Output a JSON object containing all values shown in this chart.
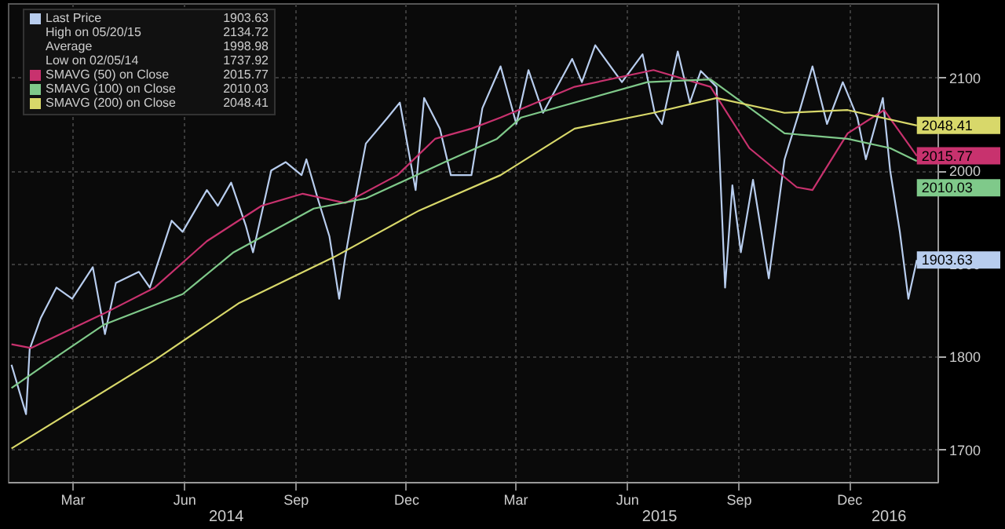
{
  "chart_data": {
    "type": "line",
    "xlim": [
      "2014-01-21",
      "2016-02-26"
    ],
    "ylim": [
      1665,
      2180
    ],
    "yticks": [
      1700,
      1800,
      1900,
      2000,
      2100
    ],
    "xticks": [
      {
        "value": "2014-03-15",
        "label": "Mar"
      },
      {
        "value": "2014-06-15",
        "label": "Jun"
      },
      {
        "value": "2014-09-15",
        "label": "Sep"
      },
      {
        "value": "2014-12-15",
        "label": "Dec"
      },
      {
        "value": "2015-03-15",
        "label": "Mar"
      },
      {
        "value": "2015-06-15",
        "label": "Jun"
      },
      {
        "value": "2015-09-15",
        "label": "Sep"
      },
      {
        "value": "2015-12-15",
        "label": "Dec"
      }
    ],
    "x2lim": [
      "2014-01-21",
      "2016-02-26"
    ],
    "x2ticks": [
      {
        "value": "2014-07-20",
        "label": "2014"
      },
      {
        "value": "2015-07-12",
        "label": "2015"
      },
      {
        "value": "2016-01-17",
        "label": "2016"
      }
    ],
    "grid": true,
    "legend": "top left",
    "annotations": [
      "High on 05/20/15 2134.72",
      "Average 1998.98",
      "Low on 02/05/14 1737.92"
    ],
    "series": [
      {
        "name": "Last Price",
        "color": "#b8cdee",
        "x": [
          "2014-01-24",
          "2014-02-05",
          "2014-02-08",
          "2014-02-17",
          "2014-03-02",
          "2014-03-15",
          "2014-04-01",
          "2014-04-11",
          "2014-04-20",
          "2014-05-09",
          "2014-05-18",
          "2014-06-05",
          "2014-06-14",
          "2014-07-04",
          "2014-07-13",
          "2014-07-24",
          "2014-08-05",
          "2014-08-11",
          "2014-08-26",
          "2014-09-07",
          "2014-09-20",
          "2014-09-24",
          "2014-10-04",
          "2014-10-13",
          "2014-10-21",
          "2014-10-26",
          "2014-11-04",
          "2014-11-12",
          "2014-11-30",
          "2014-12-10",
          "2014-12-23",
          "2014-12-30",
          "2015-01-12",
          "2015-01-21",
          "2015-02-07",
          "2015-02-16",
          "2015-03-03",
          "2015-03-16",
          "2015-03-26",
          "2015-04-07",
          "2015-05-01",
          "2015-05-09",
          "2015-05-20",
          "2015-06-11",
          "2015-06-28",
          "2015-07-08",
          "2015-07-14",
          "2015-07-27",
          "2015-08-06",
          "2015-08-15",
          "2015-08-28",
          "2015-09-04",
          "2015-09-10",
          "2015-09-17",
          "2015-09-27",
          "2015-10-10",
          "2015-10-23",
          "2015-11-05",
          "2015-11-15",
          "2015-11-27",
          "2015-12-10",
          "2015-12-22",
          "2015-12-29",
          "2016-01-12",
          "2016-01-18",
          "2016-01-26",
          "2016-02-02",
          "2016-02-09"
        ],
        "values": [
          1791,
          1737.92,
          1808,
          1841,
          1874,
          1862,
          1896,
          1824,
          1879,
          1891,
          1874,
          1946,
          1934,
          1979,
          1962,
          1987,
          1941,
          1912,
          2000,
          2009,
          1995,
          2012,
          1967,
          1929,
          1862,
          1907,
          1974,
          2029,
          2057,
          2073,
          1979,
          2078,
          2045,
          1995,
          1995,
          2067,
          2112,
          2050,
          2108,
          2062,
          2120,
          2095,
          2134.72,
          2095,
          2125,
          2062,
          2050,
          2128,
          2073,
          2107,
          2090,
          1874,
          1984,
          1912,
          1990,
          1884,
          2012,
          2067,
          2112,
          2050,
          2095,
          2057,
          2012,
          2078,
          2000,
          1934,
          1862,
          1903.63
        ],
        "value_labels": [
          null,
          null,
          null,
          null,
          null,
          null,
          null,
          null,
          null,
          null,
          null,
          null,
          null,
          null,
          null,
          null,
          null,
          null,
          null,
          null,
          null,
          null,
          null,
          null,
          null,
          null,
          null,
          null,
          null,
          null,
          null,
          null,
          null,
          null,
          null,
          null,
          null,
          null,
          null,
          null,
          null,
          null,
          null,
          null,
          null,
          null,
          null,
          null,
          null,
          null,
          null,
          null,
          null,
          null,
          null,
          null,
          null,
          null,
          null,
          null,
          null,
          null,
          null,
          null,
          null,
          null,
          null,
          "1903.63"
        ]
      },
      {
        "name": "SMAVG (50) on Close",
        "color": "#c8326e",
        "x": [
          "2014-01-24",
          "2014-02-09",
          "2014-04-10",
          "2014-05-22",
          "2014-07-04",
          "2014-08-18",
          "2014-09-21",
          "2014-10-26",
          "2014-12-08",
          "2015-01-08",
          "2015-02-07",
          "2015-03-03",
          "2015-05-03",
          "2015-07-07",
          "2015-08-23",
          "2015-09-24",
          "2015-11-02",
          "2015-11-15",
          "2015-12-14",
          "2016-01-13",
          "2016-02-09"
        ],
        "values": [
          1813,
          1809,
          1846,
          1874,
          1924,
          1962,
          1975,
          1965,
          1995,
          2034,
          2045,
          2057,
          2090,
          2108,
          2090,
          2024,
          1982,
          1979,
          2040,
          2065,
          2015.77
        ],
        "value_labels": [
          null,
          null,
          null,
          null,
          null,
          null,
          null,
          null,
          null,
          null,
          null,
          null,
          null,
          null,
          null,
          null,
          null,
          null,
          null,
          null,
          "2015.77"
        ]
      },
      {
        "name": "SMAVG (100) on Close",
        "color": "#7fc98a",
        "x": [
          "2014-01-24",
          "2014-02-26",
          "2014-04-10",
          "2014-06-14",
          "2014-07-26",
          "2014-09-30",
          "2014-11-12",
          "2015-01-16",
          "2015-02-28",
          "2015-03-20",
          "2015-07-02",
          "2015-08-23",
          "2015-10-23",
          "2015-12-14",
          "2016-01-18",
          "2016-02-09"
        ],
        "values": [
          1766,
          1796,
          1834,
          1867,
          1912,
          1959,
          1970,
          2009,
          2034,
          2057,
          2095,
          2098,
          2040,
          2034,
          2024,
          2010.03
        ],
        "value_labels": [
          null,
          null,
          null,
          null,
          null,
          null,
          null,
          null,
          null,
          null,
          null,
          null,
          null,
          null,
          null,
          "2010.03"
        ]
      },
      {
        "name": "SMAVG (200) on Close",
        "color": "#d8d86a",
        "x": [
          "2014-01-24",
          "2014-05-22",
          "2014-07-30",
          "2014-10-17",
          "2014-12-26",
          "2015-03-03",
          "2015-05-03",
          "2015-07-07",
          "2015-08-28",
          "2015-10-23",
          "2015-12-14",
          "2016-02-09"
        ],
        "values": [
          1701,
          1796,
          1857,
          1907,
          1957,
          1995,
          2045,
          2062,
          2078,
          2062,
          2065,
          2048.41
        ],
        "value_labels": [
          null,
          null,
          null,
          null,
          null,
          null,
          null,
          null,
          null,
          null,
          null,
          "2048.41"
        ]
      }
    ]
  }
}
